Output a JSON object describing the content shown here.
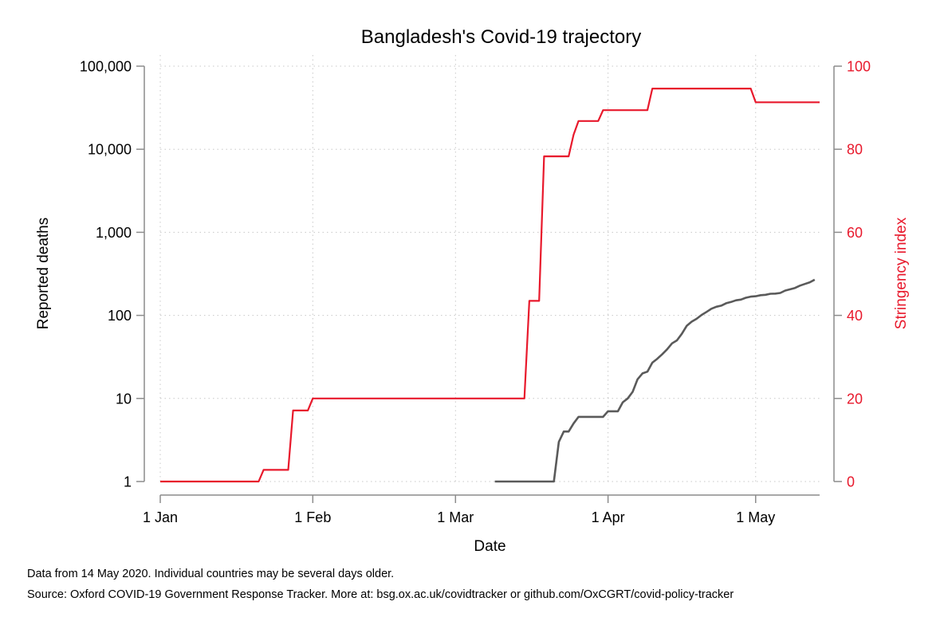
{
  "chart_data": {
    "type": "line",
    "title": "Bangladesh's Covid-19 trajectory",
    "xlabel": "Date",
    "ylabel_left": "Reported deaths",
    "ylabel_right": "Stringency index",
    "x_ticks": [
      "1 Jan",
      "1 Feb",
      "1 Mar",
      "1 Apr",
      "1 May"
    ],
    "x_tick_dates": [
      "2020-01-01",
      "2020-02-01",
      "2020-03-01",
      "2020-04-01",
      "2020-05-01"
    ],
    "xlim": [
      "2020-01-01",
      "2020-05-14"
    ],
    "y_left_scale": "log",
    "y_left_ticks": [
      1,
      10,
      100,
      1000,
      10000,
      100000
    ],
    "y_left_tick_labels": [
      "1",
      "10",
      "100",
      "1,000",
      "10,000",
      "100,000"
    ],
    "y_left_lim": [
      1,
      100000
    ],
    "y_right_ticks": [
      0,
      20,
      40,
      60,
      80,
      100
    ],
    "y_right_tick_labels": [
      "0",
      "20",
      "40",
      "60",
      "80",
      "100"
    ],
    "y_right_lim": [
      0,
      100
    ],
    "grid": true,
    "colors": {
      "deaths": "#5a5a5a",
      "stringency": "#e8192c",
      "axis": "#8c8c8c",
      "right_axis_text": "#e8192c"
    },
    "series": [
      {
        "axis": "left",
        "points": [
          [
            "2020-03-09",
            1
          ],
          [
            "2020-03-21",
            1
          ],
          [
            "2020-03-22",
            3
          ],
          [
            "2020-03-23",
            4
          ],
          [
            "2020-03-24",
            4
          ],
          [
            "2020-03-25",
            5
          ],
          [
            "2020-03-26",
            6
          ],
          [
            "2020-03-31",
            6
          ],
          [
            "2020-04-01",
            7
          ],
          [
            "2020-04-03",
            7
          ],
          [
            "2020-04-04",
            9
          ],
          [
            "2020-04-05",
            10
          ],
          [
            "2020-04-06",
            12
          ],
          [
            "2020-04-07",
            17
          ],
          [
            "2020-04-08",
            20
          ],
          [
            "2020-04-09",
            21
          ],
          [
            "2020-04-10",
            27
          ],
          [
            "2020-04-11",
            30
          ],
          [
            "2020-04-12",
            34
          ],
          [
            "2020-04-13",
            39
          ],
          [
            "2020-04-14",
            46
          ],
          [
            "2020-04-15",
            50
          ],
          [
            "2020-04-16",
            60
          ],
          [
            "2020-04-17",
            75
          ],
          [
            "2020-04-18",
            84
          ],
          [
            "2020-04-19",
            91
          ],
          [
            "2020-04-20",
            101
          ],
          [
            "2020-04-21",
            110
          ],
          [
            "2020-04-22",
            120
          ],
          [
            "2020-04-23",
            127
          ],
          [
            "2020-04-24",
            131
          ],
          [
            "2020-04-25",
            140
          ],
          [
            "2020-04-26",
            145
          ],
          [
            "2020-04-27",
            152
          ],
          [
            "2020-04-28",
            155
          ],
          [
            "2020-04-29",
            163
          ],
          [
            "2020-04-30",
            168
          ],
          [
            "2020-05-01",
            170
          ],
          [
            "2020-05-02",
            175
          ],
          [
            "2020-05-03",
            177
          ],
          [
            "2020-05-04",
            182
          ],
          [
            "2020-05-05",
            183
          ],
          [
            "2020-05-06",
            186
          ],
          [
            "2020-05-07",
            199
          ],
          [
            "2020-05-08",
            206
          ],
          [
            "2020-05-09",
            214
          ],
          [
            "2020-05-10",
            228
          ],
          [
            "2020-05-11",
            239
          ],
          [
            "2020-05-12",
            250
          ],
          [
            "2020-05-13",
            269
          ]
        ]
      },
      {
        "axis": "right",
        "points": [
          [
            "2020-01-01",
            0
          ],
          [
            "2020-01-21",
            0
          ],
          [
            "2020-01-22",
            2.8
          ],
          [
            "2020-01-27",
            2.8
          ],
          [
            "2020-01-28",
            17.1
          ],
          [
            "2020-01-31",
            17.1
          ],
          [
            "2020-02-01",
            20
          ],
          [
            "2020-03-15",
            20
          ],
          [
            "2020-03-16",
            43.5
          ],
          [
            "2020-03-17",
            43.5
          ],
          [
            "2020-03-18",
            43.5
          ],
          [
            "2020-03-19",
            78.3
          ],
          [
            "2020-03-24",
            78.3
          ],
          [
            "2020-03-25",
            83.5
          ],
          [
            "2020-03-26",
            86.8
          ],
          [
            "2020-03-30",
            86.8
          ],
          [
            "2020-03-31",
            89.4
          ],
          [
            "2020-04-09",
            89.4
          ],
          [
            "2020-04-10",
            94.6
          ],
          [
            "2020-04-30",
            94.6
          ],
          [
            "2020-05-01",
            91.3
          ],
          [
            "2020-05-14",
            91.3
          ]
        ]
      }
    ]
  },
  "notes": {
    "line1": "Data from 14 May 2020. Individual countries may be several days older.",
    "line2": "Source: Oxford COVID-19 Government Response Tracker. More at: bsg.ox.ac.uk/covidtracker or github.com/OxCGRT/covid-policy-tracker"
  }
}
